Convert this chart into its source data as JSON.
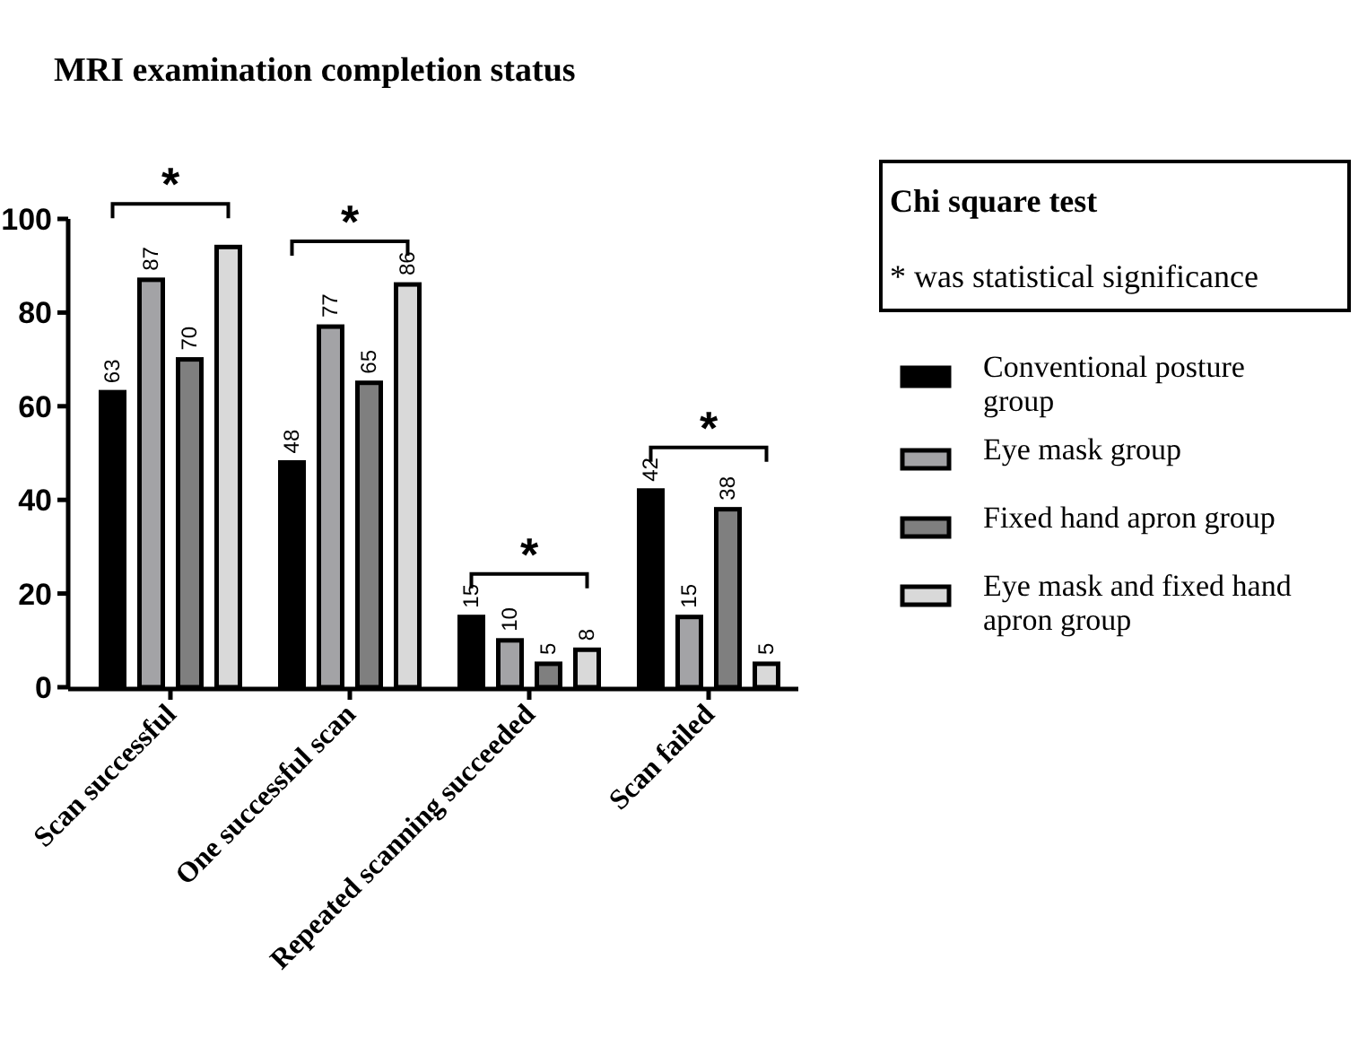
{
  "chart_data": {
    "type": "bar",
    "title": "MRI examination completion status",
    "categories": [
      "Scan successful",
      "One successful scan",
      "Repeated scanning succeeded",
      "Scan failed"
    ],
    "series": [
      {
        "name": "Conventional posture group",
        "color": "#000000",
        "values": [
          63,
          48,
          15,
          42
        ],
        "value_labels": [
          "63",
          "48",
          "15",
          "42"
        ]
      },
      {
        "name": "Eye mask group",
        "color": "#a3a3a6",
        "values": [
          87,
          77,
          10,
          15
        ],
        "value_labels": [
          "87",
          "77",
          "10",
          "15"
        ]
      },
      {
        "name": "Fixed hand apron group",
        "color": "#7f7f7f",
        "values": [
          70,
          65,
          5,
          38
        ],
        "value_labels": [
          "70",
          "65",
          "5",
          "38"
        ]
      },
      {
        "name": "Eye mask and fixed hand apron group",
        "color": "#d9d9d9",
        "values": [
          94,
          86,
          8,
          5
        ],
        "value_labels": [
          null,
          "86",
          "8",
          "5"
        ]
      }
    ],
    "ylim": [
      0,
      100
    ],
    "yticks": [
      0,
      20,
      40,
      60,
      80,
      100
    ],
    "grid": false,
    "legend": "right",
    "annotations": [
      "*",
      "*",
      "*",
      "*",
      "Chi square test",
      "* was statistical significance"
    ]
  }
}
